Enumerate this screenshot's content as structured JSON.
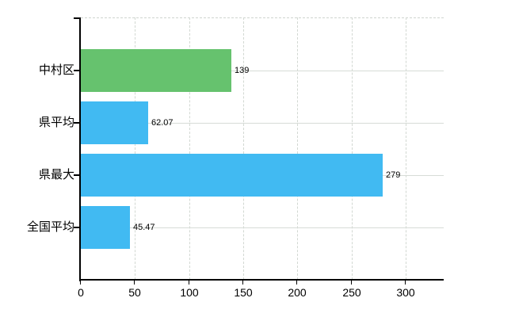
{
  "chart_data": {
    "type": "bar",
    "orientation": "horizontal",
    "title": "",
    "xlabel": "",
    "ylabel": "",
    "categories": [
      "中村区",
      "県平均",
      "県最大",
      "全国平均"
    ],
    "values": [
      139,
      62.07,
      279,
      45.47
    ],
    "value_labels": [
      "139",
      "62.07",
      "279",
      "45.47"
    ],
    "bar_colors": [
      "#66c26e",
      "#41baf2",
      "#41baf2",
      "#41baf2"
    ],
    "x_ticks": [
      0,
      50,
      100,
      150,
      200,
      250,
      300
    ],
    "x_tick_labels": [
      "0",
      "50",
      "100",
      "150",
      "200",
      "250",
      "300"
    ],
    "xlim": [
      0,
      335
    ],
    "grid": true,
    "legend": false,
    "colors": {
      "background": "#ffffff",
      "axis": "#000000",
      "text": "#000000",
      "gridline": "#d7dcd7",
      "green_bar": "#66c26e",
      "blue_bar": "#41baf2"
    }
  }
}
